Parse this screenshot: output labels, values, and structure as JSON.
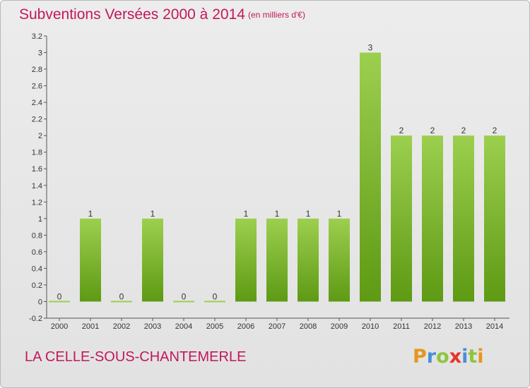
{
  "title": "Subventions Versées 2000 à 2014",
  "subtitle": "(en milliers d'€)",
  "commune": "LA CELLE-SOUS-CHANTEMERLE",
  "logo": {
    "text": "Proxiti",
    "colors": [
      "#e6961e",
      "#4a8fd6",
      "#8cc63f",
      "#e6332a",
      "#4a8fd6",
      "#8cc63f",
      "#e6961e"
    ]
  },
  "colors": {
    "title": "#c2185b",
    "bar_light": "#9ccf4e",
    "bar_dark": "#5e9a14"
  },
  "chart_data": {
    "type": "bar",
    "title": "Subventions Versées 2000 à 2014",
    "subtitle": "(en milliers d'€)",
    "xlabel": "",
    "ylabel": "",
    "categories": [
      "2000",
      "2001",
      "2002",
      "2003",
      "2004",
      "2005",
      "2006",
      "2007",
      "2008",
      "2009",
      "2010",
      "2011",
      "2012",
      "2013",
      "2014"
    ],
    "values": [
      0,
      1,
      0,
      1,
      0,
      0,
      1,
      1,
      1,
      1,
      3,
      2,
      2,
      2,
      2
    ],
    "value_labels": [
      "0",
      "1",
      "0",
      "1",
      "0",
      "0",
      "1",
      "1",
      "1",
      "1",
      "3",
      "2",
      "2",
      "2",
      "2"
    ],
    "ylim": [
      -0.2,
      3.2
    ],
    "yticks": [
      "-0.2",
      "0",
      "0.2",
      "0.4",
      "0.6",
      "0.8",
      "1",
      "1.2",
      "1.4",
      "1.6",
      "1.8",
      "2",
      "2.2",
      "2.4",
      "2.6",
      "2.8",
      "3",
      "3.2"
    ],
    "ytick_values": [
      -0.2,
      0,
      0.2,
      0.4,
      0.6,
      0.8,
      1,
      1.2,
      1.4,
      1.6,
      1.8,
      2,
      2.2,
      2.4,
      2.6,
      2.8,
      3,
      3.2
    ],
    "grid": false,
    "legend": "none"
  }
}
